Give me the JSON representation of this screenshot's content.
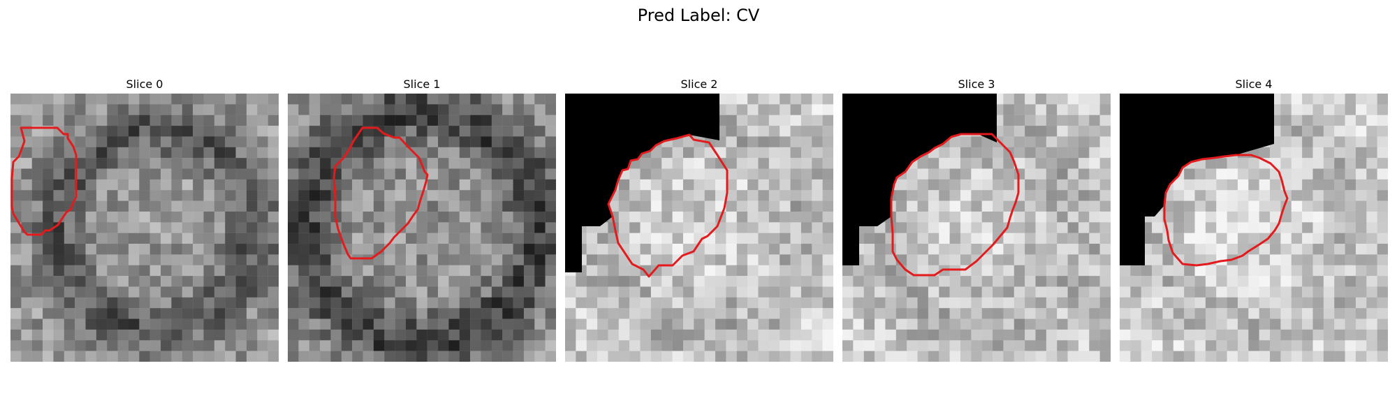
{
  "figure": {
    "title": "Pred Label: CV"
  },
  "panels": [
    {
      "title": "Slice 0"
    },
    {
      "title": "Slice 1"
    },
    {
      "title": "Slice 2"
    },
    {
      "title": "Slice 3"
    },
    {
      "title": "Slice 4"
    }
  ],
  "colors": {
    "contour": "#e41a1c",
    "mask": "#000000"
  }
}
